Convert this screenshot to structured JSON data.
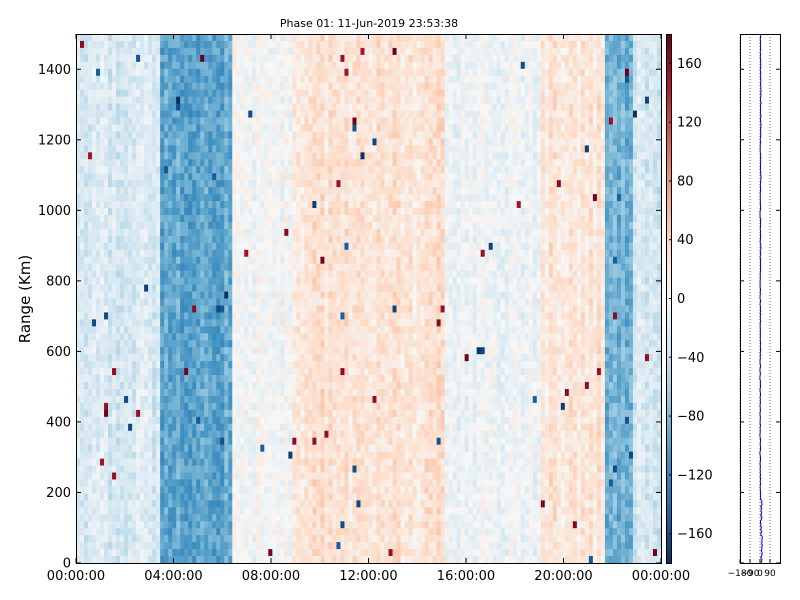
{
  "chart_data": [
    {
      "type": "heatmap",
      "title": "Phase 01: 11-Jun-2019 23:53:38",
      "xlabel": "",
      "ylabel": "Range (Km)",
      "xticks": [
        "00:00:00",
        "04:00:00",
        "08:00:00",
        "12:00:00",
        "16:00:00",
        "20:00:00",
        "00:00:00"
      ],
      "xlim_hours": [
        0,
        24
      ],
      "yticks": [
        0,
        200,
        400,
        600,
        800,
        1000,
        1200,
        1400
      ],
      "ylim": [
        0,
        1500
      ],
      "colormap": "RdBu_r",
      "clim": [
        -180,
        180
      ],
      "colorbar_ticks": [
        160,
        120,
        80,
        40,
        0,
        -40,
        -80,
        -120,
        -160
      ],
      "colorbar_tick_labels": [
        "160",
        "120",
        "80",
        "40",
        "0",
        "−40",
        "−80",
        "−120",
        "−160"
      ],
      "phase_by_time_band": [
        {
          "start_h": 0.0,
          "end_h": 3.5,
          "phase": -28
        },
        {
          "start_h": 3.5,
          "end_h": 6.4,
          "phase": -95
        },
        {
          "start_h": 6.4,
          "end_h": 8.8,
          "phase": -5
        },
        {
          "start_h": 8.8,
          "end_h": 15.2,
          "phase": 25
        },
        {
          "start_h": 15.2,
          "end_h": 19.0,
          "phase": -8
        },
        {
          "start_h": 19.0,
          "end_h": 21.7,
          "phase": 22
        },
        {
          "start_h": 21.7,
          "end_h": 22.9,
          "phase": -85
        },
        {
          "start_h": 22.9,
          "end_h": 24.0,
          "phase": -30
        }
      ],
      "grid": false
    },
    {
      "type": "line",
      "title": "",
      "xticks": [
        -180,
        -90,
        0,
        90
      ],
      "xtick_labels": [
        "−180",
        "−90",
        "0",
        "90"
      ],
      "xlim": [
        -180,
        180
      ],
      "ylim": [
        0,
        1500
      ],
      "line_color": "#0000cc",
      "profile": {
        "range_km": [
          0,
          50,
          100,
          150,
          200,
          300,
          400,
          500,
          600,
          700,
          800,
          900,
          1000,
          1100,
          1200,
          1300,
          1400,
          1500
        ],
        "phase": [
          10,
          20,
          8,
          15,
          5,
          2,
          3,
          2,
          3,
          4,
          2,
          5,
          3,
          6,
          4,
          7,
          5,
          4
        ]
      },
      "grid": "vertical dotted"
    }
  ]
}
